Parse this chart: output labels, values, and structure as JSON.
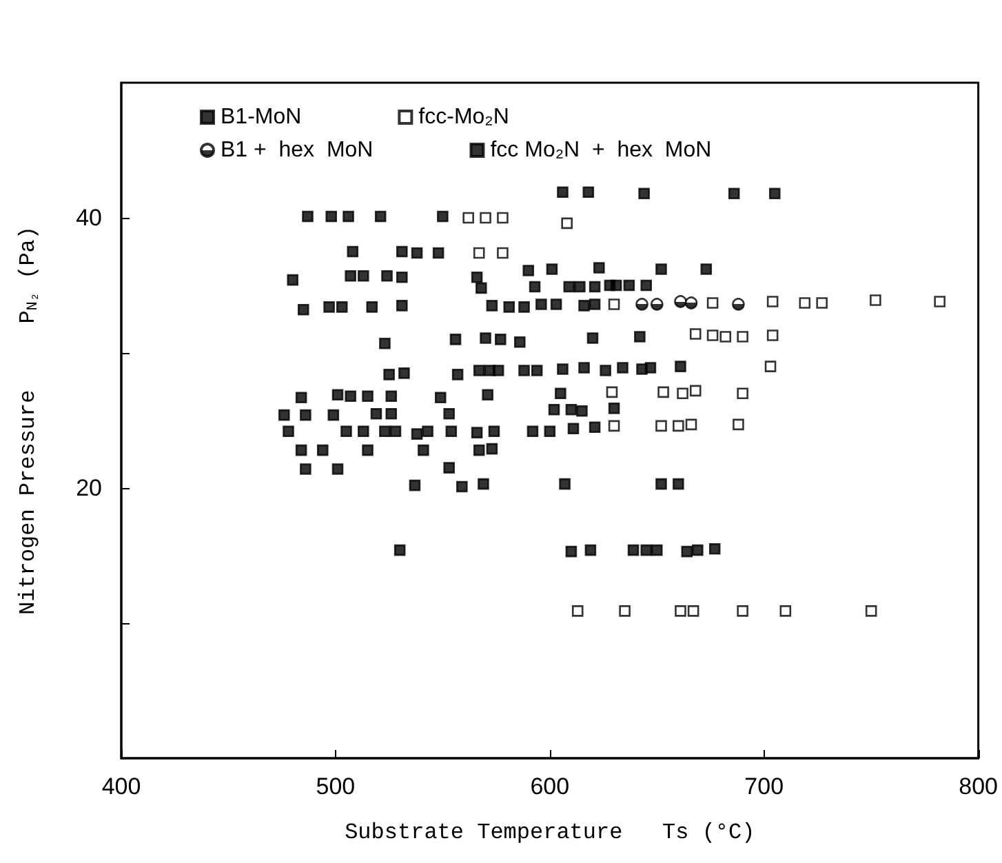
{
  "chart_data": {
    "type": "scatter",
    "xlabel": "Substrate Temperature   Ts (°C)",
    "ylabel": "Nitrogen Pressure     P$_{N₂}$ (Pa)",
    "xlim": [
      400,
      800
    ],
    "xticks": [
      400,
      500,
      600,
      700,
      800
    ],
    "ylim": [
      0,
      50
    ],
    "yticks": [
      {
        "value": 10,
        "label": null
      },
      20,
      {
        "value": 30,
        "label": null
      },
      40
    ],
    "grid": false,
    "legend": "top left",
    "series": [
      {
        "name": "B1-MoN",
        "color": "#000000",
        "marker": "square",
        "x": [
          606,
          618,
          506,
          538,
          548,
          590,
          601,
          623,
          652,
          673,
          480,
          507,
          513,
          524,
          531,
          566,
          568,
          593,
          609,
          614,
          621,
          628,
          631,
          637,
          645,
          485,
          497,
          503,
          517,
          531,
          573,
          581,
          588,
          596,
          603,
          616,
          621,
          523,
          556,
          570,
          577,
          586,
          620,
          642,
          525,
          532,
          557,
          567,
          572,
          576,
          588,
          594,
          606,
          616,
          626,
          634,
          643,
          647,
          661,
          484,
          501,
          507,
          515,
          526,
          549,
          571,
          605,
          476,
          486,
          499,
          519,
          526,
          553,
          602,
          610,
          615,
          630,
          478,
          505,
          513,
          523,
          528,
          538,
          543,
          554,
          566,
          574,
          592,
          600,
          611,
          621,
          484,
          494,
          515,
          541,
          567,
          573,
          486,
          501,
          553,
          537,
          559,
          569,
          607,
          652,
          660,
          530,
          610,
          619,
          639,
          645,
          650,
          664,
          669,
          677
        ],
        "values": [
          41.9,
          41.9,
          40.1,
          37.4,
          37.4,
          36.1,
          36.2,
          36.3,
          36.2,
          36.2,
          35.4,
          35.7,
          35.7,
          35.7,
          35.6,
          35.6,
          34.8,
          34.9,
          34.9,
          34.9,
          34.9,
          35,
          35,
          35,
          35,
          33.2,
          33.4,
          33.4,
          33.4,
          33.5,
          33.5,
          33.4,
          33.4,
          33.6,
          33.6,
          33.5,
          33.6,
          30.7,
          31,
          31.1,
          31,
          30.8,
          31.1,
          31.2,
          28.4,
          28.5,
          28.4,
          28.7,
          28.7,
          28.7,
          28.7,
          28.7,
          28.8,
          28.9,
          28.7,
          28.9,
          28.8,
          28.9,
          29,
          26.7,
          26.9,
          26.8,
          26.8,
          26.8,
          26.7,
          26.9,
          27,
          25.4,
          25.4,
          25.4,
          25.5,
          25.5,
          25.5,
          25.8,
          25.8,
          25.7,
          25.9,
          24.2,
          24.2,
          24.2,
          24.2,
          24.2,
          24,
          24.2,
          24.2,
          24.1,
          24.2,
          24.2,
          24.2,
          24.4,
          24.5,
          22.8,
          22.8,
          22.8,
          22.8,
          22.8,
          22.9,
          21.4,
          21.4,
          21.5,
          20.2,
          20.1,
          20.3,
          20.3,
          20.3,
          20.3,
          15.4,
          15.3,
          15.4,
          15.4,
          15.4,
          15.4,
          15.3,
          15.4,
          15.5
        ]
      },
      {
        "name": "B1 +  hex  MoN",
        "color": "#000000",
        "marker": "circle",
        "x": [
          643,
          650,
          661,
          666,
          688
        ],
        "values": [
          33.6,
          33.6,
          33.8,
          33.7,
          33.6
        ]
      },
      {
        "name": "fcc-Mo₂N",
        "color": "#ffffff",
        "marker": "square",
        "x": [
          562,
          570,
          578,
          608,
          567,
          578,
          630,
          676,
          704,
          719,
          727,
          752,
          782,
          668,
          676,
          682,
          690,
          704,
          703,
          629,
          653,
          662,
          668,
          690,
          630,
          652,
          660,
          666,
          688,
          613,
          635,
          661,
          667,
          690,
          710,
          750
        ],
        "values": [
          40,
          40,
          40,
          39.6,
          37.4,
          37.4,
          33.6,
          33.7,
          33.8,
          33.7,
          33.7,
          33.9,
          33.8,
          31.4,
          31.3,
          31.2,
          31.2,
          31.3,
          29,
          27.1,
          27.1,
          27,
          27.2,
          27,
          24.6,
          24.6,
          24.6,
          24.7,
          24.7,
          10.9,
          10.9,
          10.9,
          10.9,
          10.9,
          10.9,
          10.9
        ]
      },
      {
        "name": "fcc Mo₂N  +  hex  MoN",
        "color": "#000000",
        "marker": "square",
        "x": [
          487,
          498,
          521,
          550,
          508,
          531,
          644,
          686,
          705
        ],
        "values": [
          40.1,
          40.1,
          40.1,
          40.1,
          37.5,
          37.5,
          41.8,
          41.8,
          41.8
        ]
      }
    ]
  }
}
